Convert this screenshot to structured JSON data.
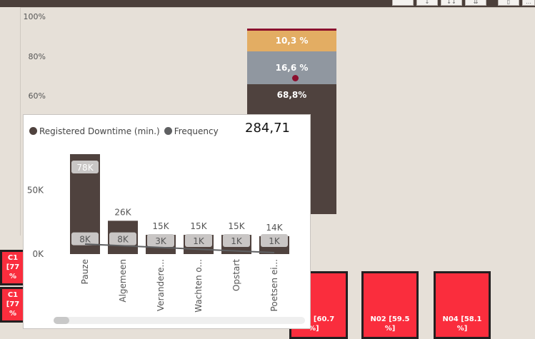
{
  "toolbar": {
    "buttons": [
      {
        "icon": "blank-icon",
        "glyph": ""
      },
      {
        "icon": "drill-down-icon",
        "glyph": "↓"
      },
      {
        "icon": "expand-all-down-icon",
        "glyph": "↓↓"
      },
      {
        "icon": "expand-next-level-icon",
        "glyph": "⇊"
      },
      {
        "icon": "focus-mode-icon",
        "glyph": "▯"
      },
      {
        "icon": "more-options-icon",
        "glyph": "…"
      }
    ]
  },
  "background_chart": {
    "y_ticks": [
      "100%",
      "80%",
      "60%"
    ],
    "stacked_bar": {
      "segments": [
        {
          "label": "10,3 %",
          "value": 10.3,
          "color": "#e3ad63"
        },
        {
          "label": "16,6 %",
          "value": 16.6,
          "color": "#9097a0"
        },
        {
          "label": "68,8%",
          "value": 68.8,
          "color": "#4f423e"
        }
      ],
      "accent_color": "#8b0f2d"
    }
  },
  "tiles": [
    {
      "id": "c1a",
      "lines": [
        "C1",
        "[77",
        "%"
      ]
    },
    {
      "id": "c1b",
      "lines": [
        "C1",
        "[77",
        "%"
      ]
    },
    {
      "id": "n01",
      "lines": [
        "l [60.7",
        "%]"
      ]
    },
    {
      "id": "n02",
      "lines": [
        "N02 [59.5",
        "%]"
      ]
    },
    {
      "id": "n04",
      "lines": [
        "N04 [58.1",
        "%]"
      ]
    }
  ],
  "tooltip": {
    "legend": [
      {
        "label": "Registered Downtime (min.)",
        "color": "#4f423e"
      },
      {
        "label": "Frequency",
        "color": "#5f6062"
      }
    ],
    "value": "284,71"
  },
  "chart_data": {
    "type": "bar",
    "categories": [
      "Pauze",
      "Algemeen",
      "Verandere...",
      "Wachten o...",
      "Opstart",
      "Poetsen ei..."
    ],
    "series": [
      {
        "name": "Registered Downtime (min.)",
        "values": [
          78000,
          26000,
          15000,
          15000,
          15000,
          14000
        ],
        "labels": [
          "78K",
          "26K",
          "15K",
          "15K",
          "15K",
          "14K"
        ]
      },
      {
        "values": [
          8000,
          8000,
          3000,
          1000,
          1000,
          1000
        ],
        "labels": [
          "8K",
          "8K",
          "3K",
          "1K",
          "1K",
          "1K"
        ]
      },
      {
        "name": "Frequency",
        "values": [
          8000,
          8000,
          3000,
          1000,
          1000,
          1000
        ]
      }
    ],
    "y_ticks": [
      "0K",
      "50K"
    ],
    "ylim": [
      0,
      78000
    ],
    "colors": {
      "bar": "#4f423e",
      "label_bg": "#c9c6c5",
      "line": "#5f6062"
    }
  }
}
